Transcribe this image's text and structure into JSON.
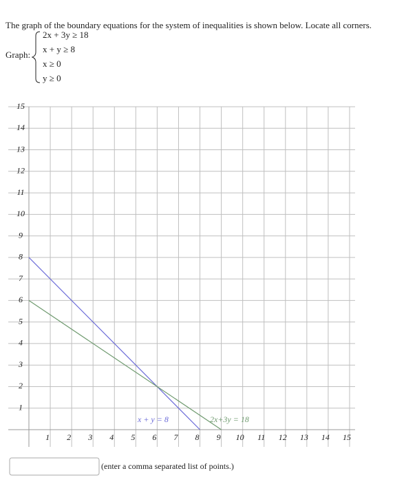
{
  "question": "The graph of the boundary equations for the system of inequalities is shown below. Locate all corners.",
  "graph_label": "Graph:",
  "inequalities": [
    "2x + 3y ≥ 18",
    "x + y ≥ 8",
    "x ≥ 0",
    "y ≥ 0"
  ],
  "chart_data": {
    "type": "line",
    "series": [
      {
        "name": "x + y = 8",
        "color": "#6a6ad8",
        "x": [
          0,
          8
        ],
        "values": [
          8,
          0
        ]
      },
      {
        "name": "2x+3y = 18",
        "color": "#6f9a6f",
        "x": [
          0,
          9
        ],
        "values": [
          6,
          0
        ]
      }
    ],
    "xlim": [
      0,
      15
    ],
    "ylim": [
      0,
      15
    ],
    "xticks": [
      1,
      2,
      3,
      4,
      5,
      6,
      7,
      8,
      9,
      10,
      11,
      12,
      13,
      14,
      15
    ],
    "yticks": [
      1,
      2,
      3,
      4,
      5,
      6,
      7,
      8,
      9,
      10,
      11,
      12,
      13,
      14,
      15
    ],
    "grid": true
  },
  "input_hint": "(enter a comma separated list of points.)"
}
